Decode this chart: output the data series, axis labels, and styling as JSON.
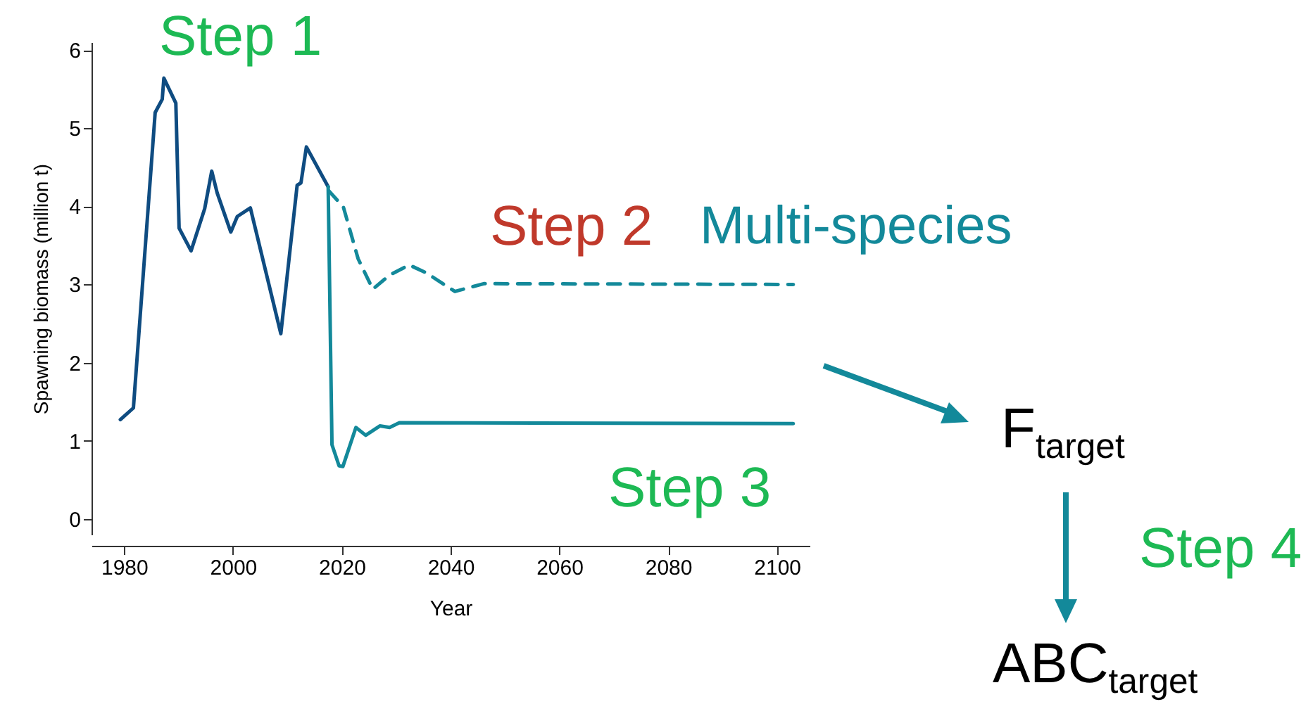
{
  "chart_data": {
    "type": "line",
    "xlabel": "Year",
    "ylabel": "Spawning biomass (million t)",
    "xlim": [
      1974,
      2106
    ],
    "xticks": [
      1980,
      2000,
      2020,
      2040,
      2060,
      2080,
      2100
    ],
    "ylim": [
      -0.2,
      6.1
    ],
    "yticks": [
      0,
      1,
      2,
      3,
      4,
      5,
      6
    ],
    "marker": "none",
    "series": [
      {
        "color": "#0f4c81",
        "line_style": "solid",
        "x": [
          1979.3,
          1981.7,
          1985.7,
          1987,
          1987.3,
          1989.5,
          1990.1,
          1992.3,
          1994.8,
          1996.1,
          1997.1,
          1999.6,
          2000.8,
          2003.2,
          2008.8,
          2011.8,
          2012.5,
          2013.5,
          2017.5
        ],
        "values": [
          1.27,
          1.42,
          5.2,
          5.37,
          5.64,
          5.32,
          3.72,
          3.43,
          3.97,
          4.45,
          4.17,
          3.67,
          3.87,
          3.98,
          2.37,
          4.27,
          4.3,
          4.76,
          4.25
        ]
      },
      {
        "name": "Multi-species",
        "color": "#13899a",
        "line_style": "dashed",
        "x": [
          2017.6,
          2020.3,
          2023,
          2025.7,
          2028.8,
          2032.4,
          2035.5,
          2040.8,
          2046.1,
          2103
        ],
        "values": [
          4.2,
          3.99,
          3.33,
          2.94,
          3.12,
          3.25,
          3.15,
          2.91,
          3.01,
          3.0
        ]
      },
      {
        "color": "#13899a",
        "line_style": "solid",
        "x": [
          2017.5,
          2018.2,
          2019.5,
          2020.2,
          2022.6,
          2024.4,
          2027,
          2028.8,
          2030.6,
          2103
        ],
        "values": [
          4.25,
          0.95,
          0.68,
          0.67,
          1.17,
          1.07,
          1.19,
          1.17,
          1.23,
          1.22
        ]
      }
    ],
    "annotations": [
      "Step 1",
      "Step 2",
      "Step 3",
      "F$_{target}$",
      "Step 4",
      "ABC$_{target}$"
    ]
  }
}
